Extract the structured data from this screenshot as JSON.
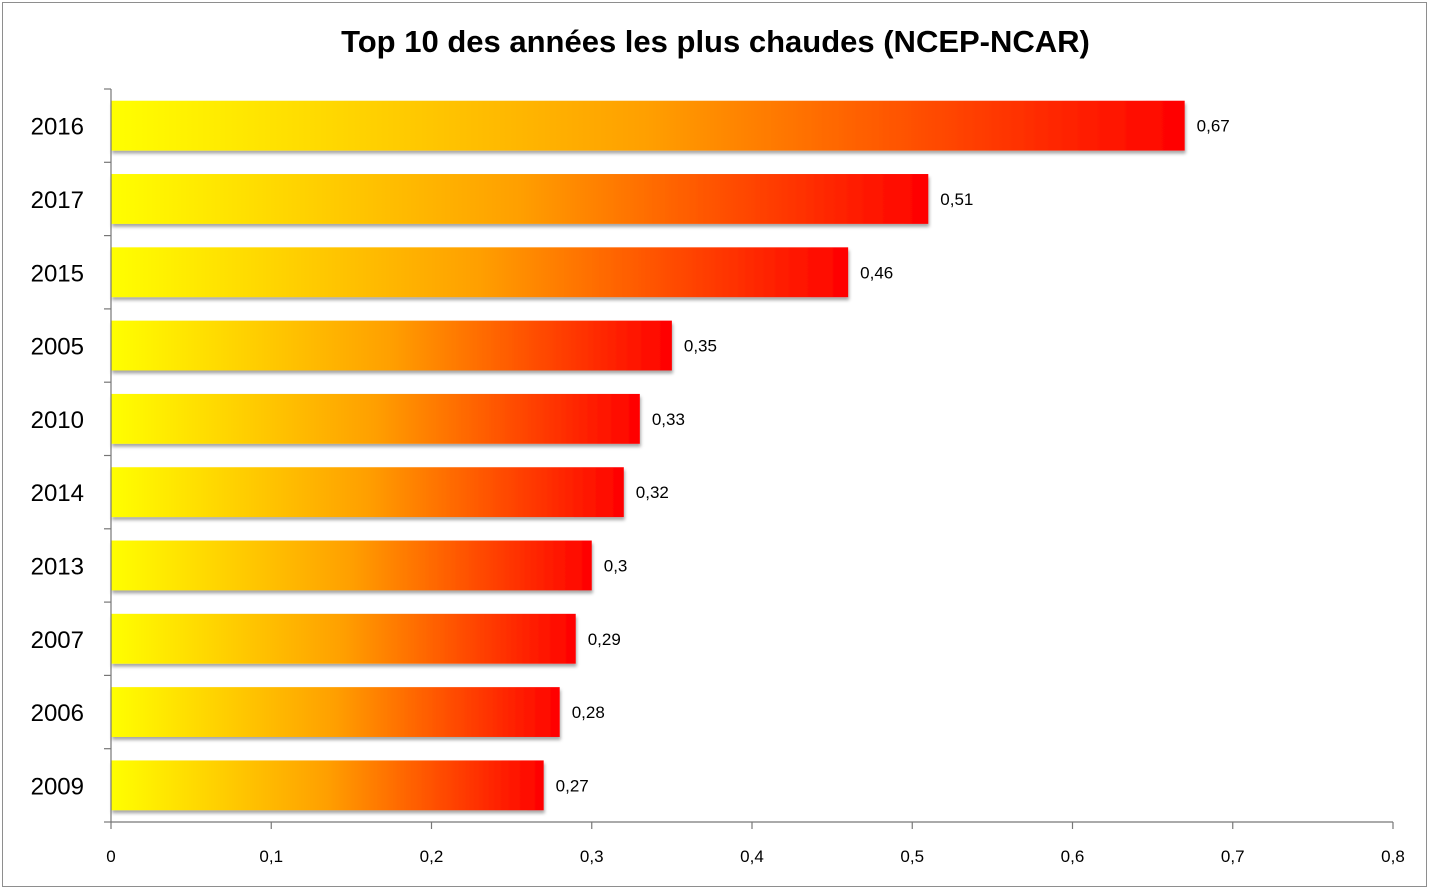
{
  "chart_data": {
    "type": "bar",
    "orientation": "horizontal",
    "title": "Top 10 des années les plus chaudes (NCEP-NCAR)",
    "xlabel": "",
    "ylabel": "",
    "categories": [
      "2016",
      "2017",
      "2015",
      "2005",
      "2010",
      "2014",
      "2013",
      "2007",
      "2006",
      "2009"
    ],
    "values": [
      0.67,
      0.51,
      0.46,
      0.35,
      0.33,
      0.32,
      0.3,
      0.29,
      0.28,
      0.27
    ],
    "data_labels": [
      "0,67",
      "0,51",
      "0,46",
      "0,35",
      "0,33",
      "0,32",
      "0,3",
      "0,29",
      "0,28",
      "0,27"
    ],
    "xlim": [
      0,
      0.8
    ],
    "x_ticks": [
      0,
      0.1,
      0.2,
      0.3,
      0.4,
      0.5,
      0.6,
      0.7,
      0.8
    ],
    "x_tick_labels": [
      "0",
      "0,1",
      "0,2",
      "0,3",
      "0,4",
      "0,5",
      "0,6",
      "0,7",
      "0,8"
    ],
    "grid": false,
    "legend": "none",
    "bar_gradient": [
      "#ffff00",
      "#ff9f00",
      "#ff0000"
    ]
  }
}
